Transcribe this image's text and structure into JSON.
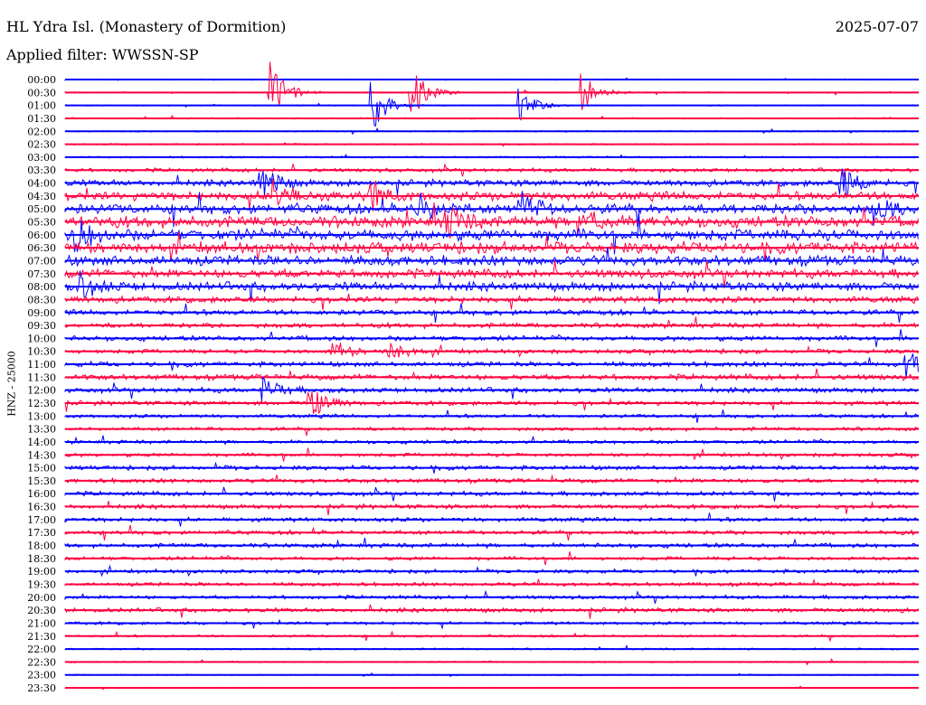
{
  "header": {
    "station": "HL Ydra Isl. (Monastery of Dormition)",
    "date": "2025-07-07",
    "filter": "Applied filter: WWSSN-SP"
  },
  "chart_data": {
    "type": "line",
    "title": "HL Ydra Isl. (Monastery of Dormition)",
    "ylabel": "HNZ - 25000",
    "xlabel": "",
    "minutes_per_line": 30,
    "colors": [
      "#0000ff",
      "#ff0040"
    ],
    "rows": [
      "00:00",
      "00:30",
      "01:00",
      "01:30",
      "02:00",
      "02:30",
      "03:00",
      "03:30",
      "04:00",
      "04:30",
      "05:00",
      "05:30",
      "06:00",
      "06:30",
      "07:00",
      "07:30",
      "08:00",
      "08:30",
      "09:00",
      "09:30",
      "10:00",
      "10:30",
      "11:00",
      "11:30",
      "12:00",
      "12:30",
      "13:00",
      "13:30",
      "14:00",
      "14:30",
      "15:00",
      "15:30",
      "16:00",
      "16:30",
      "17:00",
      "17:30",
      "18:00",
      "18:30",
      "19:00",
      "19:30",
      "20:00",
      "20:30",
      "21:00",
      "21:30",
      "22:00",
      "22:30",
      "23:00",
      "23:30"
    ],
    "noise_level": [
      0.1,
      0.1,
      0.1,
      0.12,
      0.12,
      0.12,
      0.15,
      0.3,
      0.5,
      0.7,
      0.8,
      0.9,
      0.9,
      0.9,
      0.8,
      0.7,
      0.7,
      0.5,
      0.45,
      0.4,
      0.4,
      0.35,
      0.4,
      0.45,
      0.4,
      0.35,
      0.3,
      0.3,
      0.3,
      0.3,
      0.35,
      0.35,
      0.35,
      0.35,
      0.35,
      0.35,
      0.35,
      0.3,
      0.3,
      0.3,
      0.3,
      0.35,
      0.25,
      0.2,
      0.15,
      0.12,
      0.1,
      0.1
    ],
    "events": [
      {
        "row": 1,
        "minute": 7.2,
        "amp": 5
      },
      {
        "row": 2,
        "minute": 10.8,
        "amp": 4
      },
      {
        "row": 1,
        "minute": 12.2,
        "amp": 4
      },
      {
        "row": 2,
        "minute": 16,
        "amp": 3
      },
      {
        "row": 1,
        "minute": 18.2,
        "amp": 3
      },
      {
        "row": 8,
        "minute": 6.9,
        "amp": 3
      },
      {
        "row": 9,
        "minute": 7.3,
        "amp": 3
      },
      {
        "row": 9,
        "minute": 10.7,
        "amp": 3
      },
      {
        "row": 10,
        "minute": 12.3,
        "amp": 3
      },
      {
        "row": 11,
        "minute": 13.4,
        "amp": 2.5
      },
      {
        "row": 10,
        "minute": 16,
        "amp": 3
      },
      {
        "row": 11,
        "minute": 18.1,
        "amp": 2.5
      },
      {
        "row": 8,
        "minute": 27.3,
        "amp": 2.5
      },
      {
        "row": 10,
        "minute": 28.4,
        "amp": 2.5
      },
      {
        "row": 12,
        "minute": 0.4,
        "amp": 3
      },
      {
        "row": 16,
        "minute": 0.6,
        "amp": 2
      },
      {
        "row": 21,
        "minute": 9.4,
        "amp": 2
      },
      {
        "row": 21,
        "minute": 11.4,
        "amp": 2
      },
      {
        "row": 24,
        "minute": 7,
        "amp": 2
      },
      {
        "row": 25,
        "minute": 8.6,
        "amp": 3
      },
      {
        "row": 22,
        "minute": 29.6,
        "amp": 2.5
      }
    ]
  }
}
